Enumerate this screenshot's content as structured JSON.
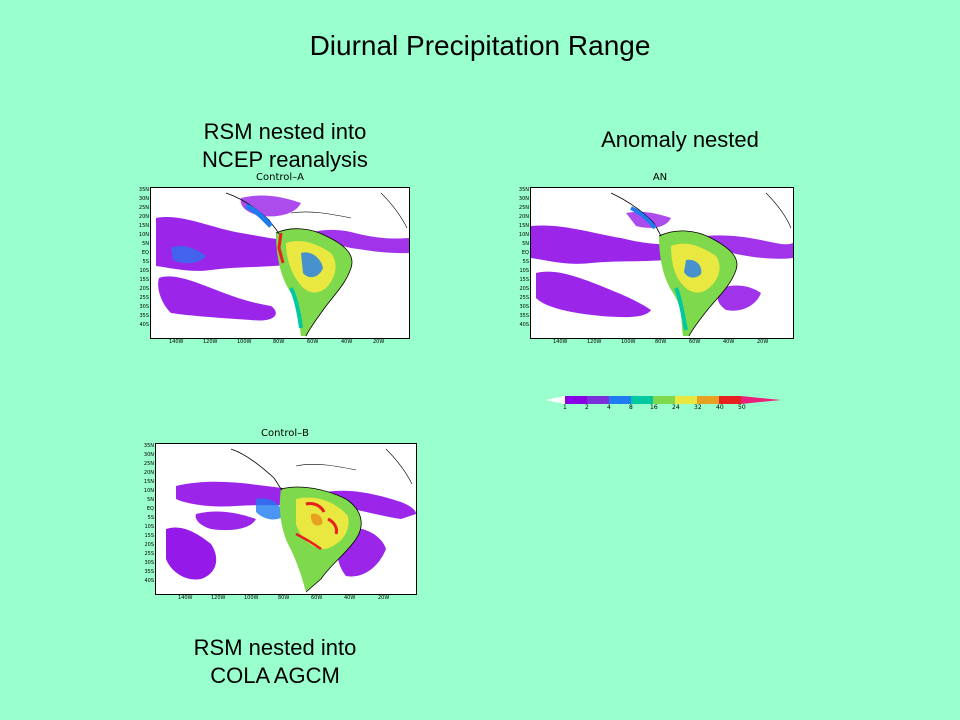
{
  "page": {
    "title": "Diurnal Precipitation Range"
  },
  "panels": [
    {
      "id": "control-a",
      "caption": "RSM nested into NCEP reanalysis",
      "caption_lines": [
        "RSM nested into",
        "NCEP reanalysis"
      ],
      "map_label": "Control–A"
    },
    {
      "id": "anomaly-nested",
      "caption": "Anomaly nested",
      "caption_lines": [
        "Anomaly nested"
      ],
      "map_label": "AN"
    },
    {
      "id": "control-b",
      "caption": "RSM nested into COLA AGCM",
      "caption_lines": [
        "RSM nested into",
        "COLA AGCM"
      ],
      "map_label": "Control–B"
    }
  ],
  "axes": {
    "lat_ticks": [
      "35N",
      "30N",
      "25N",
      "20N",
      "15N",
      "10N",
      "5N",
      "EQ",
      "5S",
      "10S",
      "15S",
      "20S",
      "25S",
      "30S",
      "35S",
      "40S"
    ],
    "lon_ticks": [
      "140W",
      "120W",
      "100W",
      "80W",
      "60W",
      "40W",
      "20W"
    ]
  },
  "colorbar": {
    "ticks": [
      "1",
      "2",
      "4",
      "8",
      "16",
      "24",
      "32",
      "40",
      "50"
    ],
    "colors": [
      "#ffffff",
      "#8a00e6",
      "#7a2fd8",
      "#1e7cf0",
      "#00c8a0",
      "#7fd94d",
      "#e8e840",
      "#e8a020",
      "#e82020",
      "#e8207a"
    ]
  }
}
